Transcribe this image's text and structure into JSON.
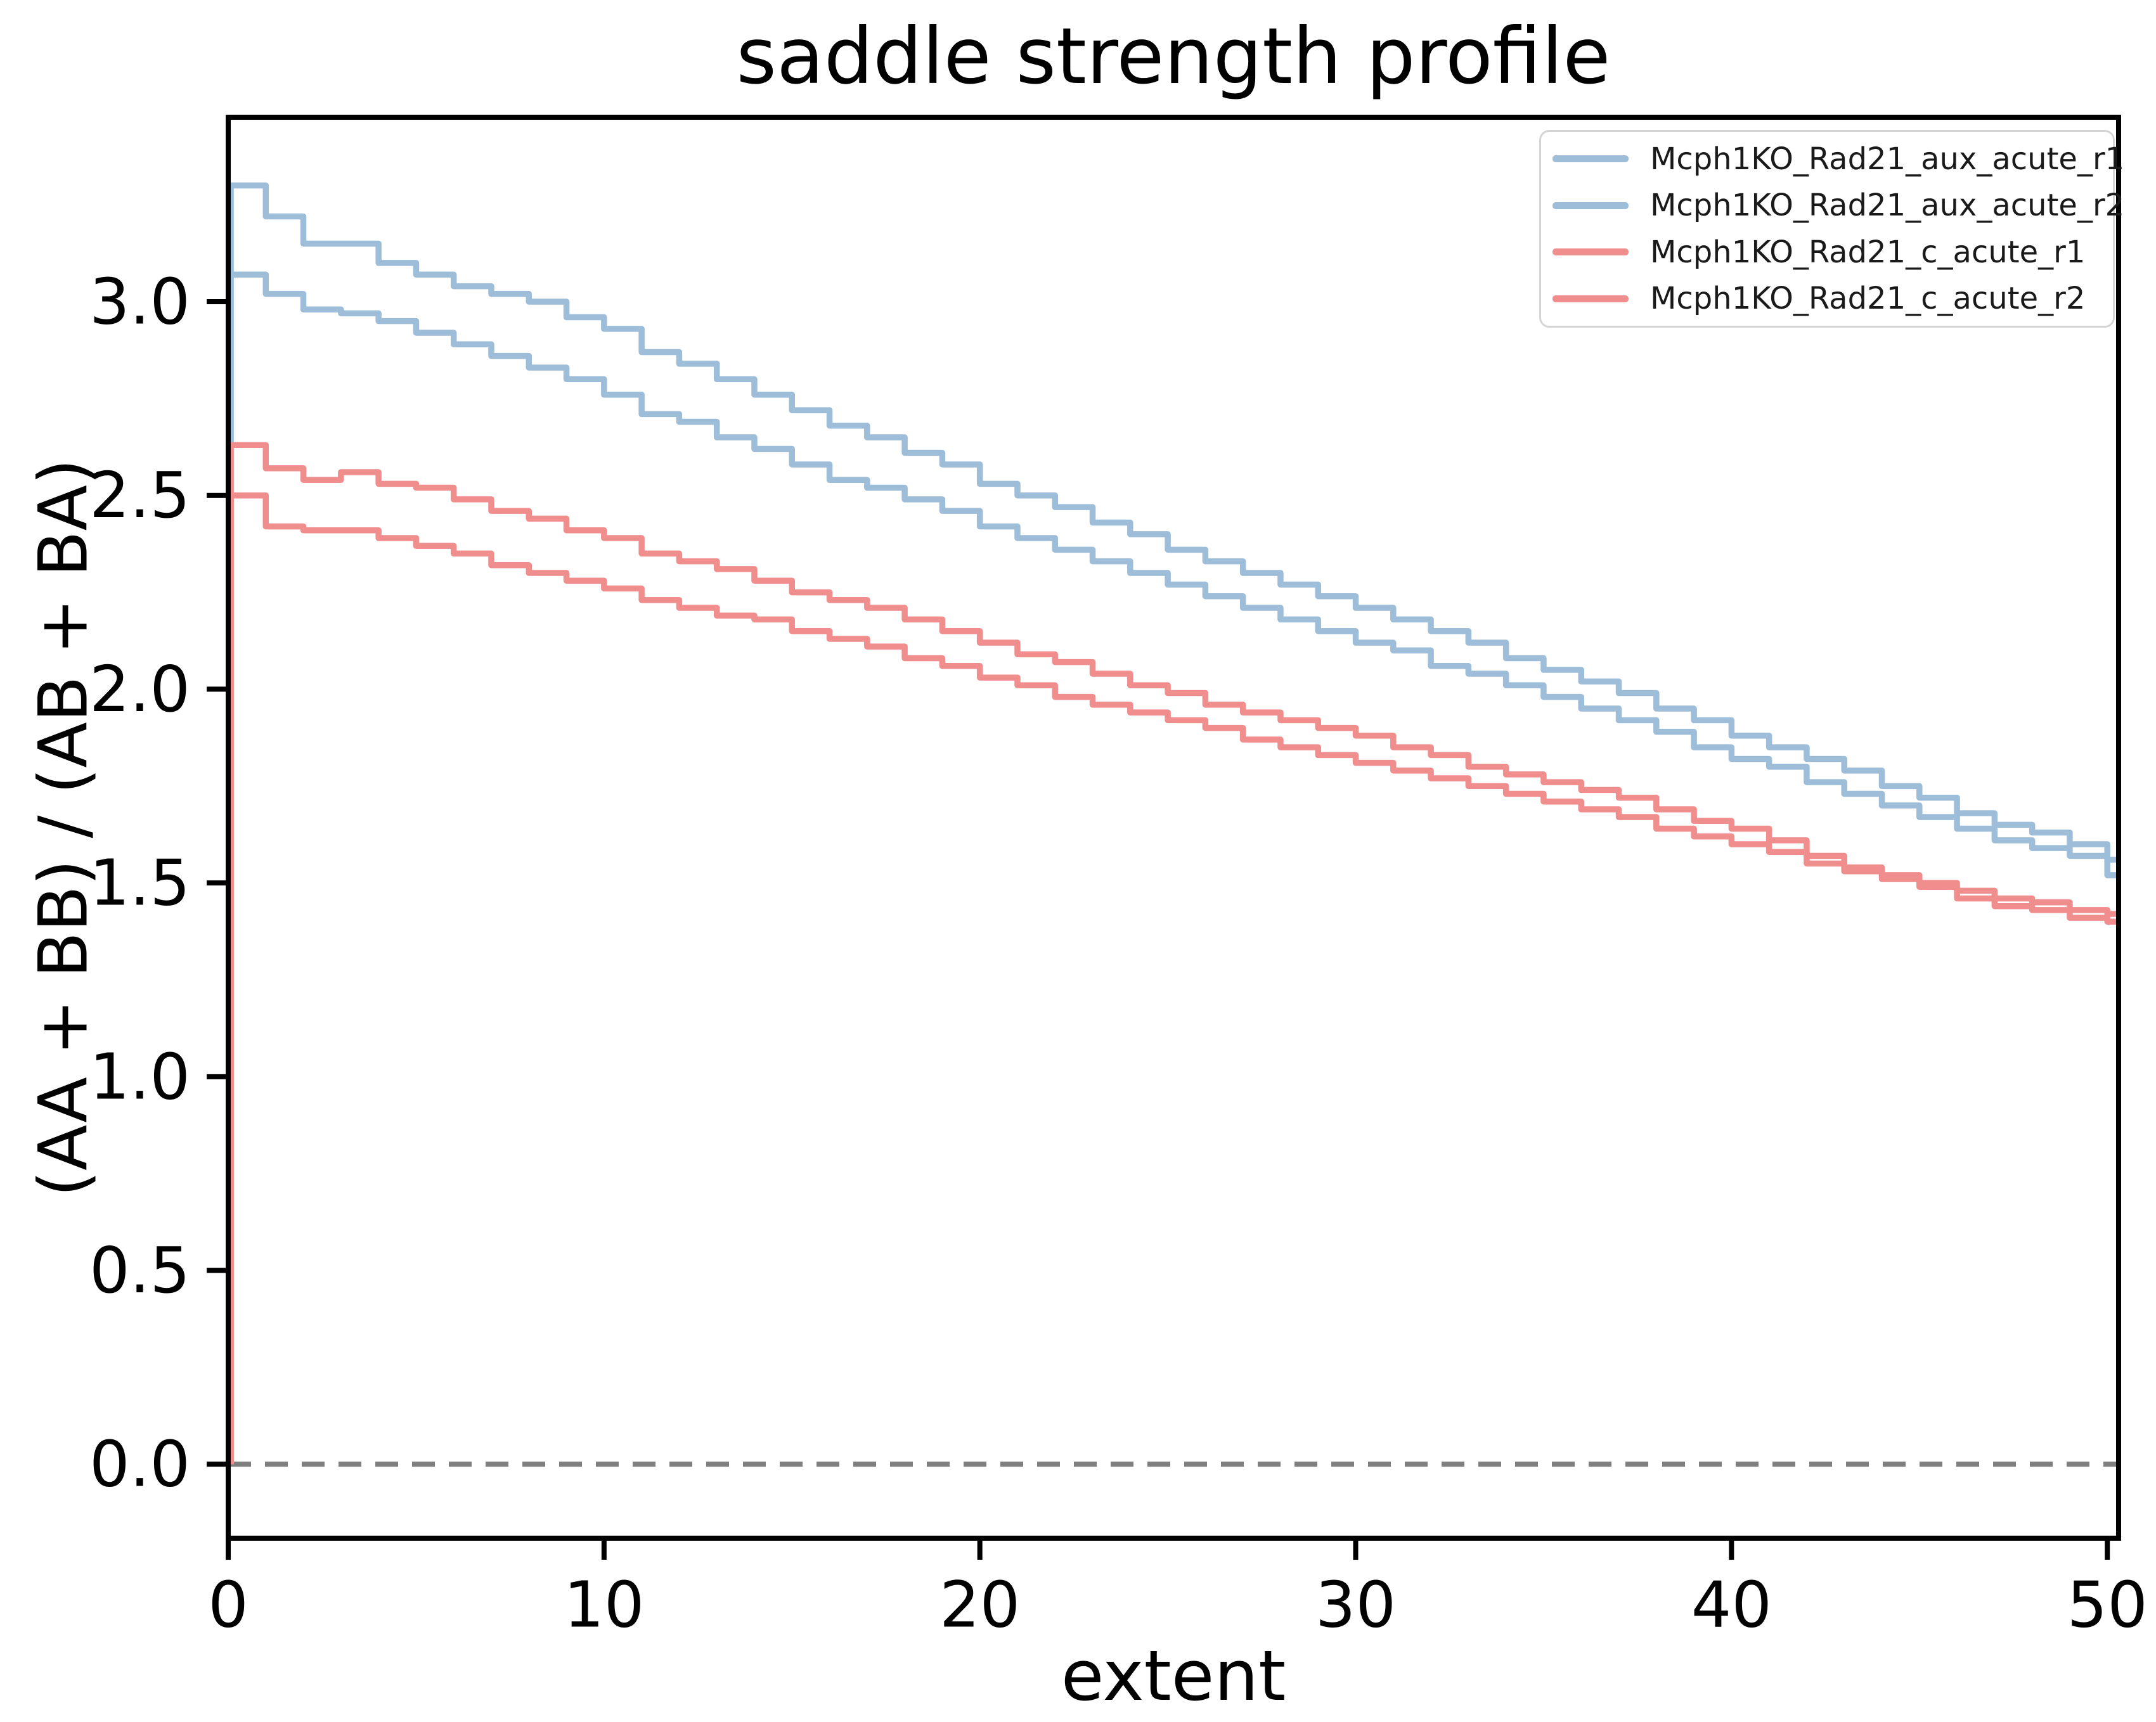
{
  "window": {
    "title": "saddle strength profile"
  },
  "chart_data": {
    "type": "line",
    "subtype": "step-post",
    "title": "saddle strength profile",
    "xlabel": "extent",
    "ylabel": "(AA + BB) / (AB + BA)",
    "xlim": [
      0,
      50.3
    ],
    "ylim": [
      -0.191,
      3.476
    ],
    "grid": false,
    "legend_position": "upper right",
    "x_ticks": [
      0,
      10,
      20,
      30,
      40,
      50
    ],
    "x_tick_labels": [
      "0",
      "10",
      "20",
      "30",
      "40",
      "50"
    ],
    "y_ticks": [
      0.0,
      0.5,
      1.0,
      1.5,
      2.0,
      2.5,
      3.0
    ],
    "y_tick_labels": [
      "0.0",
      "0.5",
      "1.0",
      "1.5",
      "2.0",
      "2.5",
      "3.0"
    ],
    "zero_line": {
      "y": 0,
      "style": "dashed",
      "color": "#7f7f7f"
    },
    "axis_color": "#000000",
    "x_step_start": 0,
    "series": [
      {
        "name": "Mcph1KO_Rad21_aux_acute_r1",
        "color": "#9dbdd9",
        "values": [
          3.3,
          3.22,
          3.15,
          3.15,
          3.1,
          3.07,
          3.04,
          3.02,
          3.0,
          2.96,
          2.93,
          2.87,
          2.84,
          2.8,
          2.76,
          2.72,
          2.68,
          2.65,
          2.61,
          2.58,
          2.53,
          2.5,
          2.47,
          2.43,
          2.4,
          2.36,
          2.33,
          2.3,
          2.27,
          2.24,
          2.21,
          2.18,
          2.15,
          2.12,
          2.08,
          2.05,
          2.02,
          1.99,
          1.95,
          1.92,
          1.88,
          1.85,
          1.82,
          1.79,
          1.75,
          1.72,
          1.68,
          1.65,
          1.63,
          1.6,
          1.56
        ]
      },
      {
        "name": "Mcph1KO_Rad21_aux_acute_r2",
        "color": "#9dbdd9",
        "values": [
          3.07,
          3.02,
          2.98,
          2.97,
          2.95,
          2.92,
          2.89,
          2.86,
          2.83,
          2.8,
          2.76,
          2.71,
          2.69,
          2.65,
          2.62,
          2.58,
          2.54,
          2.52,
          2.49,
          2.46,
          2.42,
          2.39,
          2.36,
          2.33,
          2.3,
          2.27,
          2.24,
          2.21,
          2.18,
          2.15,
          2.12,
          2.1,
          2.06,
          2.04,
          2.01,
          1.98,
          1.95,
          1.92,
          1.89,
          1.85,
          1.82,
          1.8,
          1.76,
          1.73,
          1.7,
          1.67,
          1.64,
          1.61,
          1.59,
          1.57,
          1.52
        ]
      },
      {
        "name": "Mcph1KO_Rad21_c_acute_r1",
        "color": "#f08d8d",
        "values": [
          2.63,
          2.57,
          2.54,
          2.56,
          2.53,
          2.52,
          2.49,
          2.46,
          2.44,
          2.41,
          2.39,
          2.35,
          2.33,
          2.31,
          2.28,
          2.25,
          2.23,
          2.21,
          2.18,
          2.15,
          2.12,
          2.09,
          2.07,
          2.04,
          2.01,
          1.99,
          1.96,
          1.94,
          1.92,
          1.9,
          1.88,
          1.85,
          1.83,
          1.8,
          1.78,
          1.76,
          1.74,
          1.72,
          1.69,
          1.66,
          1.64,
          1.61,
          1.57,
          1.54,
          1.52,
          1.5,
          1.48,
          1.46,
          1.45,
          1.43,
          1.42
        ]
      },
      {
        "name": "Mcph1KO_Rad21_c_acute_r2",
        "color": "#f08d8d",
        "values": [
          2.5,
          2.42,
          2.41,
          2.41,
          2.39,
          2.37,
          2.35,
          2.32,
          2.3,
          2.28,
          2.26,
          2.23,
          2.21,
          2.19,
          2.18,
          2.15,
          2.13,
          2.11,
          2.08,
          2.06,
          2.03,
          2.01,
          1.98,
          1.96,
          1.94,
          1.92,
          1.9,
          1.87,
          1.85,
          1.83,
          1.81,
          1.79,
          1.77,
          1.75,
          1.73,
          1.71,
          1.69,
          1.67,
          1.64,
          1.62,
          1.6,
          1.58,
          1.55,
          1.53,
          1.51,
          1.49,
          1.46,
          1.44,
          1.43,
          1.41,
          1.4
        ]
      }
    ]
  }
}
